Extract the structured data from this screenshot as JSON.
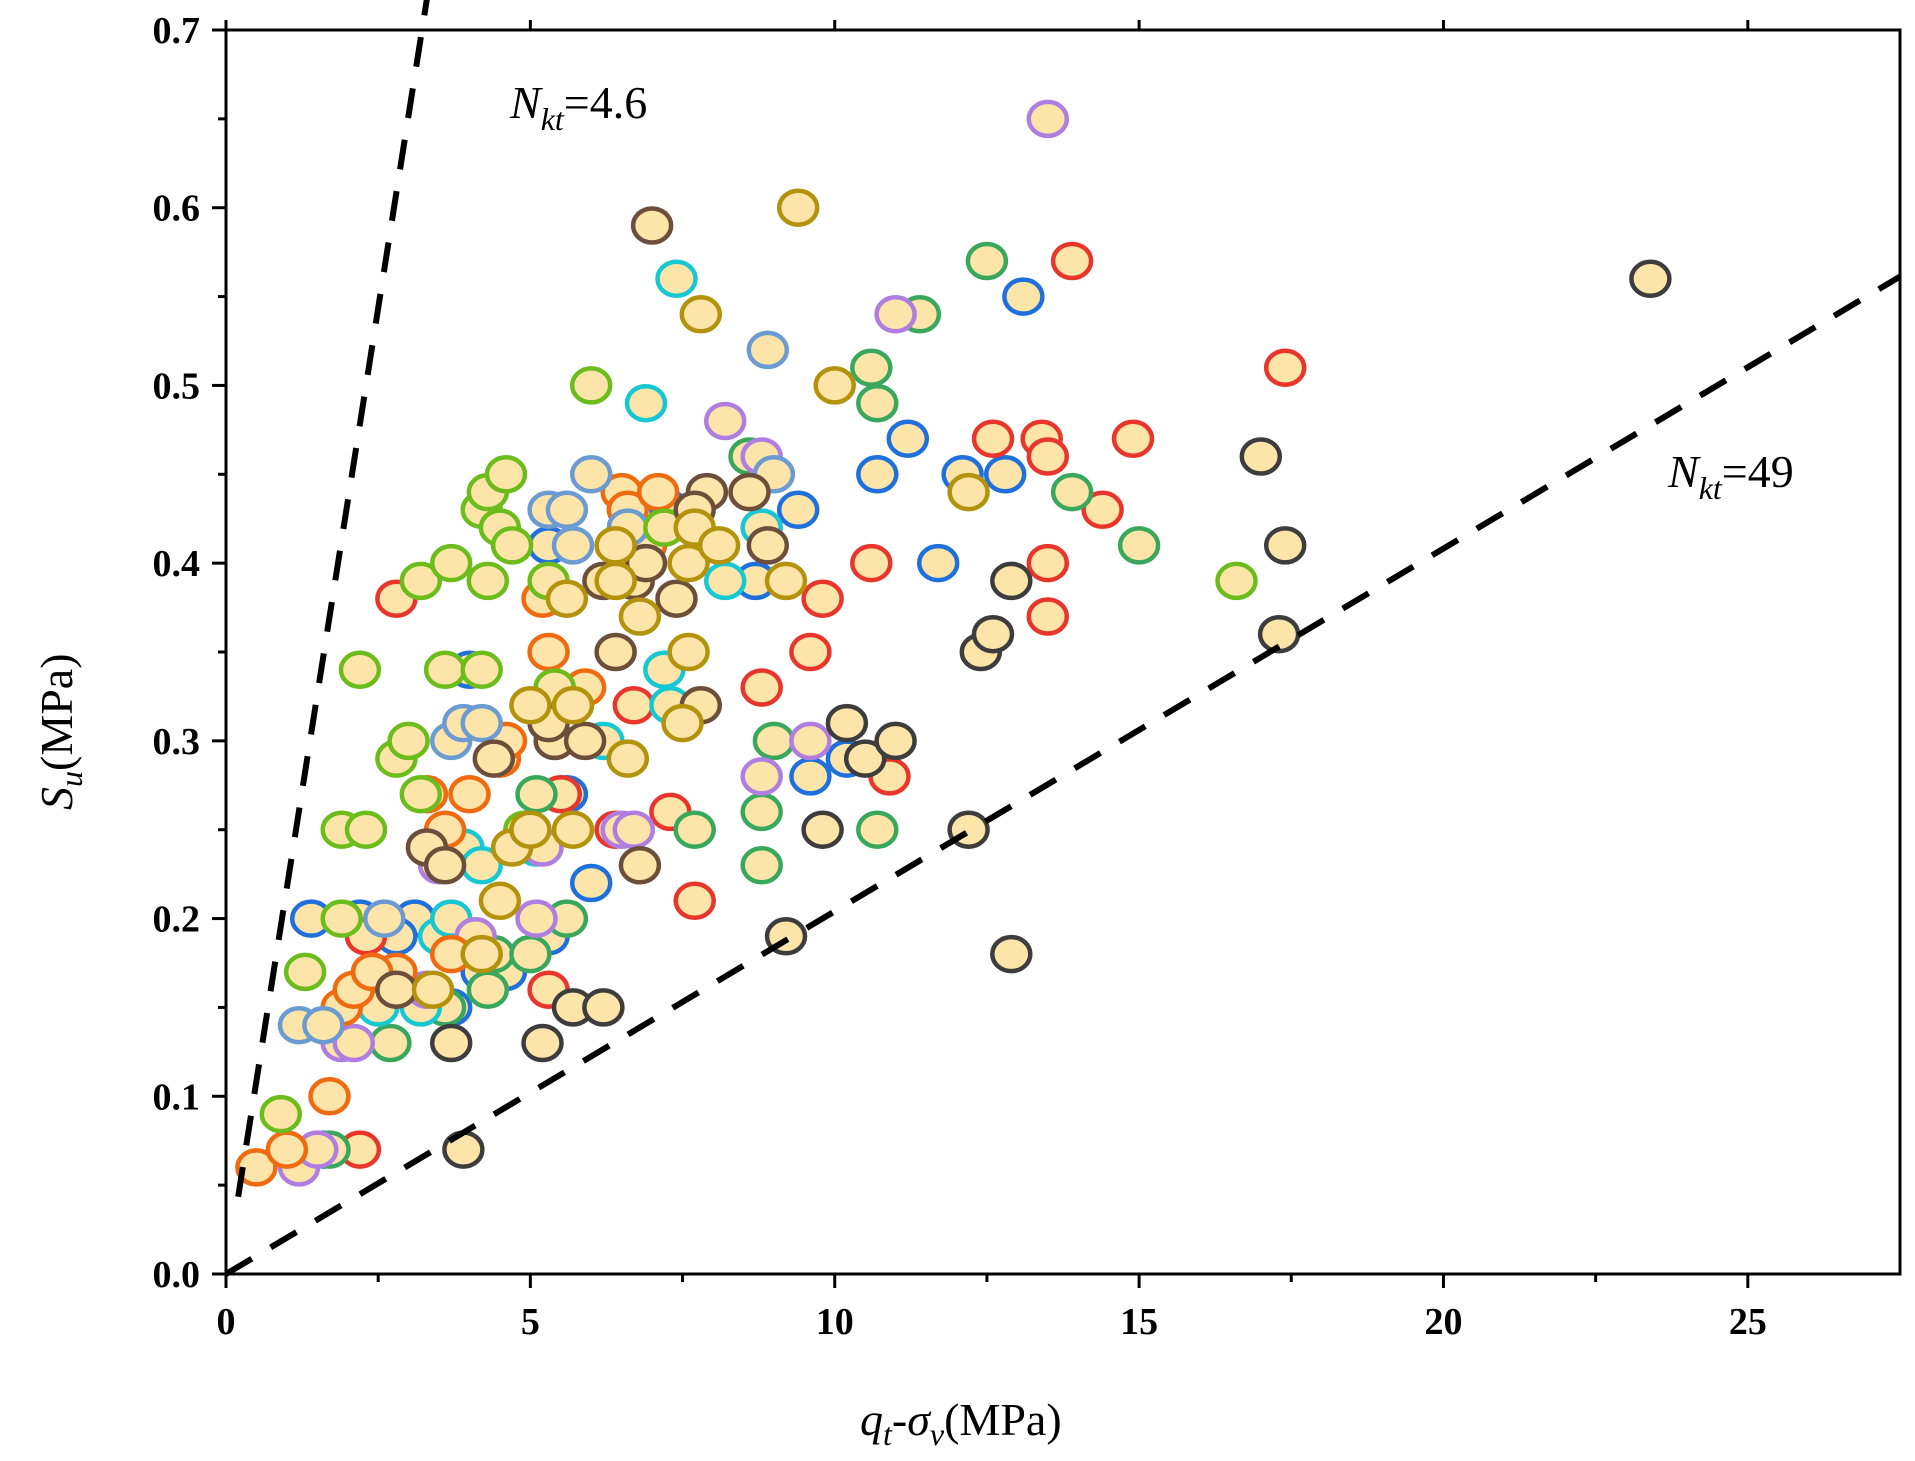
{
  "chart_data": {
    "type": "scatter",
    "xlim": [
      0,
      27.5
    ],
    "ylim": [
      0,
      0.7
    ],
    "xticks": [
      "0",
      "5",
      "10",
      "15",
      "20",
      "25"
    ],
    "yticks": [
      "0.0",
      "0.1",
      "0.2",
      "0.3",
      "0.4",
      "0.5",
      "0.6",
      "0.7"
    ],
    "xlabel": {
      "main": "q",
      "sub1": "t",
      "sep": "-σ",
      "sub2": "v",
      "unit": "(MPa)"
    },
    "ylabel": {
      "main": "S",
      "sub": "u",
      "unit": "(MPa)"
    },
    "marker_fill": "#fde4a8",
    "lines": [
      {
        "name": "Nkt=4.6",
        "label_main": "N",
        "label_sub": "kt",
        "label_val": "=4.6",
        "slope": 0.2174,
        "x_range": [
          0.2,
          4.5
        ]
      },
      {
        "name": "Nkt=49",
        "label_main": "N",
        "label_sub": "kt",
        "label_val": "=49",
        "slope": 0.02041,
        "x_range": [
          0,
          27.5
        ]
      }
    ],
    "series": [
      {
        "name": "blue",
        "color": "#1f6fdc",
        "points": [
          [
            1.4,
            0.2
          ],
          [
            1.6,
            0.07
          ],
          [
            2.2,
            0.2
          ],
          [
            3.7,
            0.15
          ],
          [
            4.2,
            0.17
          ],
          [
            4.6,
            0.17
          ],
          [
            5.3,
            0.19
          ],
          [
            5.3,
            0.41
          ],
          [
            6.0,
            0.22
          ],
          [
            7.3,
            0.43
          ],
          [
            8.7,
            0.39
          ],
          [
            9.4,
            0.43
          ],
          [
            9.6,
            0.28
          ],
          [
            10.2,
            0.29
          ],
          [
            10.7,
            0.45
          ],
          [
            11.2,
            0.47
          ],
          [
            11.7,
            0.4
          ],
          [
            12.1,
            0.45
          ],
          [
            12.8,
            0.45
          ],
          [
            13.1,
            0.55
          ],
          [
            4.0,
            0.34
          ],
          [
            3.1,
            0.2
          ],
          [
            5.6,
            0.27
          ],
          [
            2.8,
            0.19
          ]
        ]
      },
      {
        "name": "red",
        "color": "#e8362c",
        "points": [
          [
            2.2,
            0.07
          ],
          [
            2.8,
            0.38
          ],
          [
            5.3,
            0.16
          ],
          [
            5.5,
            0.27
          ],
          [
            6.4,
            0.25
          ],
          [
            6.7,
            0.32
          ],
          [
            7.3,
            0.26
          ],
          [
            7.7,
            0.21
          ],
          [
            8.8,
            0.33
          ],
          [
            9.6,
            0.35
          ],
          [
            9.8,
            0.38
          ],
          [
            10.6,
            0.4
          ],
          [
            10.9,
            0.28
          ],
          [
            12.6,
            0.47
          ],
          [
            13.4,
            0.47
          ],
          [
            13.5,
            0.37
          ],
          [
            13.5,
            0.4
          ],
          [
            13.5,
            0.46
          ],
          [
            13.9,
            0.57
          ],
          [
            14.4,
            0.43
          ],
          [
            14.9,
            0.47
          ],
          [
            17.4,
            0.51
          ],
          [
            2.3,
            0.19
          ]
        ]
      },
      {
        "name": "green",
        "color": "#3aa85c",
        "points": [
          [
            1.7,
            0.07
          ],
          [
            2.7,
            0.13
          ],
          [
            3.6,
            0.15
          ],
          [
            4.3,
            0.16
          ],
          [
            4.4,
            0.18
          ],
          [
            5.0,
            0.18
          ],
          [
            5.6,
            0.2
          ],
          [
            7.7,
            0.25
          ],
          [
            8.8,
            0.23
          ],
          [
            8.8,
            0.26
          ],
          [
            10.7,
            0.25
          ],
          [
            10.6,
            0.51
          ],
          [
            10.7,
            0.49
          ],
          [
            11.4,
            0.54
          ],
          [
            12.5,
            0.57
          ],
          [
            13.9,
            0.44
          ],
          [
            15.0,
            0.41
          ],
          [
            8.6,
            0.46
          ],
          [
            9.0,
            0.3
          ],
          [
            5.1,
            0.27
          ]
        ]
      },
      {
        "name": "cyan",
        "color": "#17c7d1",
        "points": [
          [
            2.5,
            0.15
          ],
          [
            3.5,
            0.19
          ],
          [
            3.9,
            0.24
          ],
          [
            4.2,
            0.23
          ],
          [
            5.1,
            0.24
          ],
          [
            5.4,
            0.3
          ],
          [
            6.2,
            0.3
          ],
          [
            6.9,
            0.49
          ],
          [
            7.2,
            0.34
          ],
          [
            7.3,
            0.32
          ],
          [
            7.4,
            0.56
          ],
          [
            8.2,
            0.39
          ],
          [
            8.8,
            0.42
          ],
          [
            3.7,
            0.2
          ],
          [
            3.2,
            0.15
          ]
        ]
      },
      {
        "name": "purple",
        "color": "#b07ee0",
        "points": [
          [
            1.2,
            0.06
          ],
          [
            1.5,
            0.07
          ],
          [
            1.9,
            0.13
          ],
          [
            2.1,
            0.13
          ],
          [
            3.3,
            0.16
          ],
          [
            4.1,
            0.19
          ],
          [
            5.1,
            0.2
          ],
          [
            5.2,
            0.24
          ],
          [
            6.5,
            0.25
          ],
          [
            6.7,
            0.25
          ],
          [
            8.2,
            0.48
          ],
          [
            8.8,
            0.46
          ],
          [
            8.8,
            0.28
          ],
          [
            9.6,
            0.3
          ],
          [
            11.0,
            0.54
          ],
          [
            13.5,
            0.65
          ],
          [
            3.5,
            0.23
          ]
        ]
      },
      {
        "name": "orange",
        "color": "#f06a10",
        "points": [
          [
            0.5,
            0.06
          ],
          [
            1.0,
            0.07
          ],
          [
            1.7,
            0.1
          ],
          [
            1.9,
            0.15
          ],
          [
            2.1,
            0.16
          ],
          [
            2.4,
            0.17
          ],
          [
            2.8,
            0.17
          ],
          [
            3.3,
            0.27
          ],
          [
            3.6,
            0.25
          ],
          [
            4.0,
            0.27
          ],
          [
            4.5,
            0.29
          ],
          [
            4.6,
            0.3
          ],
          [
            5.2,
            0.38
          ],
          [
            5.3,
            0.35
          ],
          [
            5.5,
            0.32
          ],
          [
            5.9,
            0.33
          ],
          [
            6.5,
            0.44
          ],
          [
            6.6,
            0.43
          ],
          [
            7.1,
            0.44
          ],
          [
            7.2,
            0.42
          ],
          [
            6.9,
            0.41
          ],
          [
            2.4,
            0.17
          ],
          [
            3.7,
            0.18
          ]
        ]
      },
      {
        "name": "lightblue",
        "color": "#6b9bd1",
        "points": [
          [
            1.2,
            0.14
          ],
          [
            1.6,
            0.14
          ],
          [
            2.6,
            0.2
          ],
          [
            3.7,
            0.3
          ],
          [
            3.9,
            0.31
          ],
          [
            5.3,
            0.43
          ],
          [
            5.6,
            0.43
          ],
          [
            5.7,
            0.41
          ],
          [
            6.0,
            0.45
          ],
          [
            6.6,
            0.42
          ],
          [
            8.9,
            0.52
          ],
          [
            9.0,
            0.45
          ],
          [
            4.2,
            0.31
          ]
        ]
      },
      {
        "name": "lime",
        "color": "#6cbc1c",
        "points": [
          [
            0.9,
            0.09
          ],
          [
            1.3,
            0.17
          ],
          [
            1.9,
            0.25
          ],
          [
            2.3,
            0.25
          ],
          [
            1.9,
            0.2
          ],
          [
            2.2,
            0.34
          ],
          [
            2.8,
            0.29
          ],
          [
            3.0,
            0.3
          ],
          [
            3.2,
            0.27
          ],
          [
            3.2,
            0.39
          ],
          [
            3.7,
            0.4
          ],
          [
            3.6,
            0.34
          ],
          [
            4.2,
            0.34
          ],
          [
            4.3,
            0.39
          ],
          [
            4.2,
            0.43
          ],
          [
            4.3,
            0.44
          ],
          [
            4.5,
            0.42
          ],
          [
            4.6,
            0.45
          ],
          [
            4.7,
            0.41
          ],
          [
            4.9,
            0.25
          ],
          [
            5.3,
            0.39
          ],
          [
            5.4,
            0.33
          ],
          [
            6.0,
            0.5
          ],
          [
            7.2,
            0.42
          ],
          [
            16.6,
            0.39
          ]
        ]
      },
      {
        "name": "brown",
        "color": "#6d4e3a",
        "points": [
          [
            2.8,
            0.16
          ],
          [
            3.3,
            0.24
          ],
          [
            3.6,
            0.23
          ],
          [
            4.4,
            0.29
          ],
          [
            5.4,
            0.3
          ],
          [
            5.9,
            0.3
          ],
          [
            6.2,
            0.39
          ],
          [
            6.4,
            0.35
          ],
          [
            6.7,
            0.39
          ],
          [
            6.9,
            0.4
          ],
          [
            7.0,
            0.59
          ],
          [
            7.4,
            0.38
          ],
          [
            7.8,
            0.32
          ],
          [
            7.9,
            0.44
          ],
          [
            8.6,
            0.44
          ],
          [
            8.9,
            0.41
          ],
          [
            6.8,
            0.23
          ],
          [
            5.3,
            0.31
          ],
          [
            7.7,
            0.43
          ]
        ]
      },
      {
        "name": "olive",
        "color": "#b3920c",
        "points": [
          [
            3.4,
            0.16
          ],
          [
            4.2,
            0.18
          ],
          [
            4.5,
            0.21
          ],
          [
            4.7,
            0.24
          ],
          [
            5.0,
            0.25
          ],
          [
            5.6,
            0.38
          ],
          [
            5.7,
            0.25
          ],
          [
            6.4,
            0.39
          ],
          [
            6.4,
            0.41
          ],
          [
            6.6,
            0.29
          ],
          [
            6.8,
            0.37
          ],
          [
            7.5,
            0.31
          ],
          [
            7.6,
            0.35
          ],
          [
            7.6,
            0.4
          ],
          [
            7.7,
            0.42
          ],
          [
            7.8,
            0.54
          ],
          [
            8.1,
            0.41
          ],
          [
            9.2,
            0.39
          ],
          [
            9.4,
            0.6
          ],
          [
            10.0,
            0.5
          ],
          [
            12.2,
            0.44
          ],
          [
            5.0,
            0.32
          ],
          [
            5.7,
            0.32
          ]
        ]
      },
      {
        "name": "black",
        "color": "#3d3d3d",
        "points": [
          [
            3.7,
            0.13
          ],
          [
            3.9,
            0.07
          ],
          [
            5.2,
            0.13
          ],
          [
            5.7,
            0.15
          ],
          [
            6.2,
            0.15
          ],
          [
            9.2,
            0.19
          ],
          [
            9.8,
            0.25
          ],
          [
            10.2,
            0.31
          ],
          [
            10.5,
            0.29
          ],
          [
            11.0,
            0.3
          ],
          [
            12.2,
            0.25
          ],
          [
            12.4,
            0.35
          ],
          [
            12.6,
            0.36
          ],
          [
            12.9,
            0.39
          ],
          [
            12.9,
            0.18
          ],
          [
            17.0,
            0.46
          ],
          [
            17.3,
            0.36
          ],
          [
            17.4,
            0.41
          ],
          [
            23.4,
            0.56
          ]
        ]
      }
    ]
  }
}
